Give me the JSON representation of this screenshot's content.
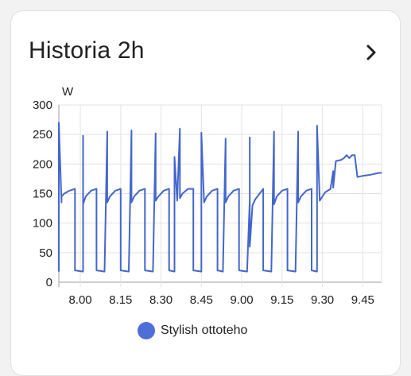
{
  "card": {
    "title": "Historia 2h",
    "chevron_icon": "chevron-right-icon"
  },
  "chart_data": {
    "type": "line",
    "ylabel": "W",
    "ylim": [
      0,
      300
    ],
    "yticks": [
      "0",
      "50",
      "100",
      "150",
      "200",
      "250",
      "300"
    ],
    "xlim": [
      "7:52",
      "9:52"
    ],
    "xticks": [
      "8.00",
      "8.15",
      "8.30",
      "8.45",
      "9.00",
      "9.15",
      "9.30",
      "9.45"
    ],
    "grid": true,
    "color": "#4466cc",
    "series": [
      {
        "name": "Stylish ottoteho",
        "points": [
          [
            "7:52",
            18
          ],
          [
            "7:52",
            270
          ],
          [
            "7:53",
            135
          ],
          [
            "7:53",
            145
          ],
          [
            "7:54",
            150
          ],
          [
            "7:56",
            155
          ],
          [
            "7:58",
            158
          ],
          [
            "7:58",
            20
          ],
          [
            "8:01",
            18
          ],
          [
            "8:01",
            248
          ],
          [
            "8:01",
            132
          ],
          [
            "8:02",
            145
          ],
          [
            "8:04",
            155
          ],
          [
            "8:06",
            158
          ],
          [
            "8:06",
            20
          ],
          [
            "8:09",
            18
          ],
          [
            "8:10",
            255
          ],
          [
            "8:10",
            135
          ],
          [
            "8:11",
            145
          ],
          [
            "8:13",
            155
          ],
          [
            "8:15",
            158
          ],
          [
            "8:15",
            20
          ],
          [
            "8:18",
            18
          ],
          [
            "8:19",
            257
          ],
          [
            "8:19",
            135
          ],
          [
            "8:20",
            145
          ],
          [
            "8:22",
            155
          ],
          [
            "8:24",
            158
          ],
          [
            "8:24",
            20
          ],
          [
            "8:27",
            18
          ],
          [
            "8:28",
            252
          ],
          [
            "8:28",
            138
          ],
          [
            "8:29",
            145
          ],
          [
            "8:31",
            155
          ],
          [
            "8:33",
            158
          ],
          [
            "8:33",
            20
          ],
          [
            "8:35",
            18
          ],
          [
            "8:35",
            212
          ],
          [
            "8:36",
            138
          ],
          [
            "8:37",
            260
          ],
          [
            "8:37",
            142
          ],
          [
            "8:38",
            150
          ],
          [
            "8:40",
            158
          ],
          [
            "8:42",
            158
          ],
          [
            "8:42",
            20
          ],
          [
            "8:45",
            18
          ],
          [
            "8:45",
            253
          ],
          [
            "8:46",
            135
          ],
          [
            "8:47",
            145
          ],
          [
            "8:49",
            155
          ],
          [
            "8:51",
            158
          ],
          [
            "8:51",
            20
          ],
          [
            "8:53",
            18
          ],
          [
            "8:54",
            243
          ],
          [
            "8:54",
            135
          ],
          [
            "8:55",
            145
          ],
          [
            "8:57",
            155
          ],
          [
            "8:59",
            158
          ],
          [
            "8:59",
            20
          ],
          [
            "9:02",
            18
          ],
          [
            "9:03",
            140
          ],
          [
            "9:03",
            245
          ],
          [
            "9:03",
            60
          ],
          [
            "9:04",
            130
          ],
          [
            "9:05",
            140
          ],
          [
            "9:07",
            152
          ],
          [
            "9:08",
            158
          ],
          [
            "9:08",
            20
          ],
          [
            "9:11",
            18
          ],
          [
            "9:12",
            255
          ],
          [
            "9:12",
            132
          ],
          [
            "9:13",
            145
          ],
          [
            "9:15",
            155
          ],
          [
            "9:17",
            158
          ],
          [
            "9:17",
            20
          ],
          [
            "9:20",
            18
          ],
          [
            "9:21",
            255
          ],
          [
            "9:21",
            135
          ],
          [
            "9:22",
            145
          ],
          [
            "9:24",
            155
          ],
          [
            "9:26",
            158
          ],
          [
            "9:26",
            20
          ],
          [
            "9:28",
            18
          ],
          [
            "9:28",
            265
          ],
          [
            "9:29",
            138
          ],
          [
            "9:30",
            145
          ],
          [
            "9:31",
            152
          ],
          [
            "9:33",
            158
          ],
          [
            "9:34",
            188
          ],
          [
            "9:34",
            160
          ],
          [
            "9:35",
            205
          ],
          [
            "9:37",
            207
          ],
          [
            "9:38",
            210
          ],
          [
            "9:39",
            215
          ],
          [
            "9:40",
            210
          ],
          [
            "9:41",
            215
          ],
          [
            "9:42",
            215
          ],
          [
            "9:43",
            178
          ],
          [
            "9:45",
            180
          ],
          [
            "9:48",
            182
          ],
          [
            "9:51",
            185
          ],
          [
            "9:52",
            185
          ]
        ]
      }
    ]
  }
}
